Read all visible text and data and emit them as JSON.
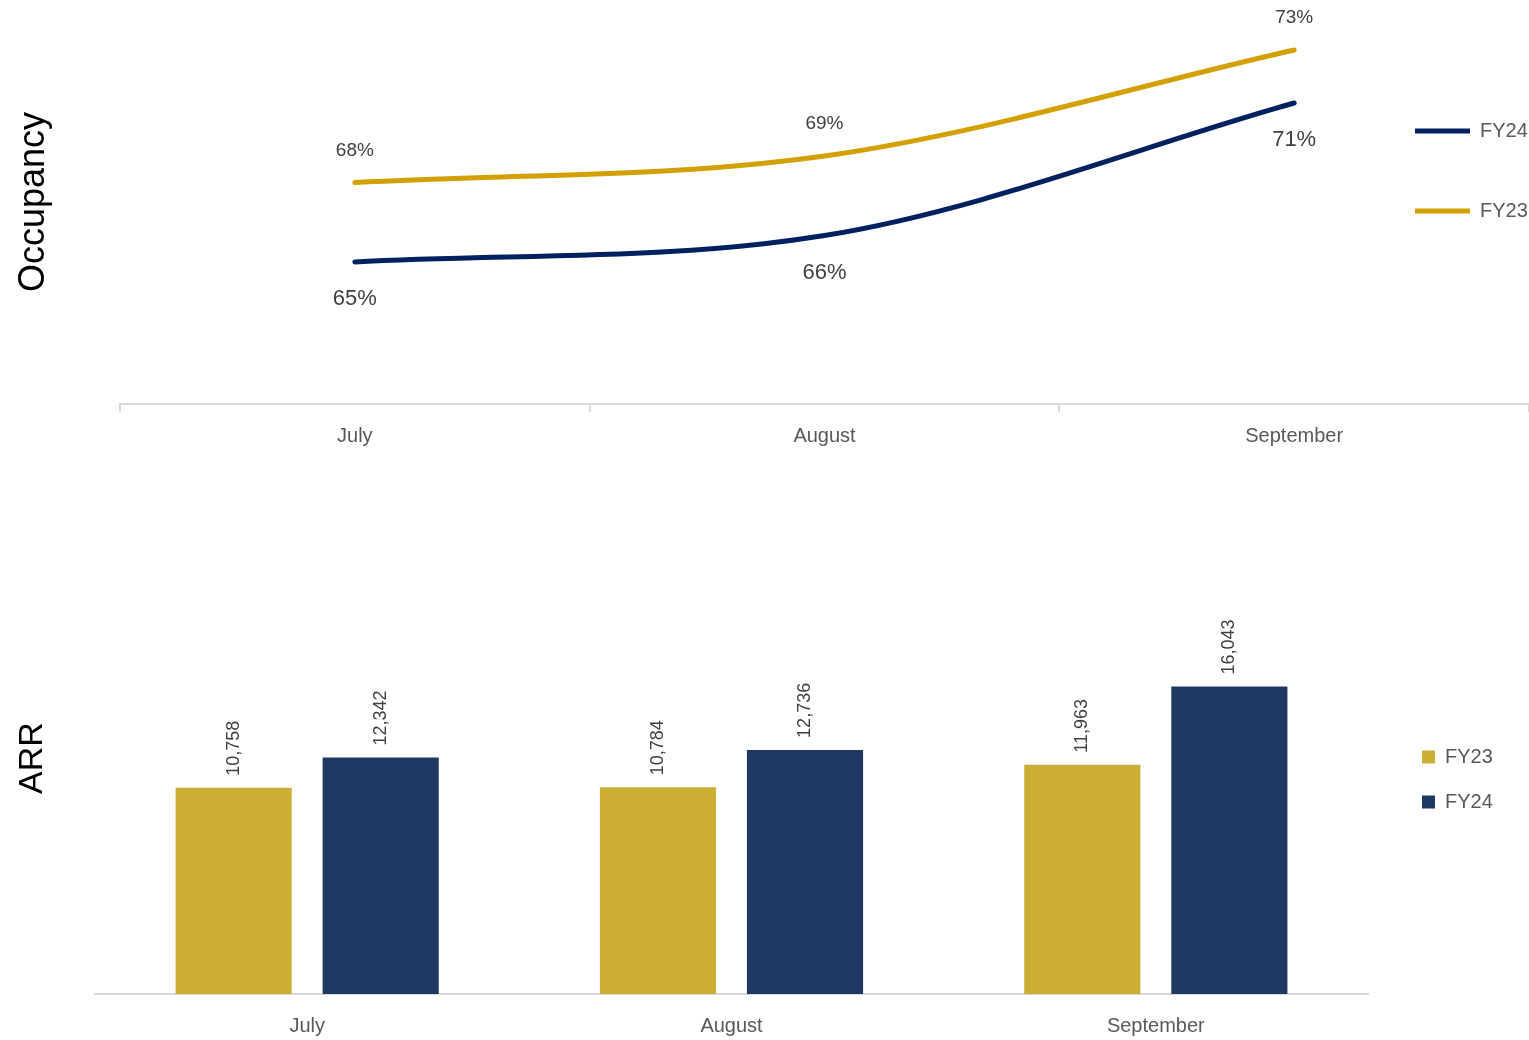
{
  "chart_data": [
    {
      "type": "line",
      "ylabel": "Occupancy",
      "categories": [
        "July",
        "August",
        "September"
      ],
      "series": [
        {
          "name": "FY24",
          "color": "#002060",
          "values": [
            65,
            66,
            71
          ],
          "value_labels": [
            "65%",
            "66%",
            "71%"
          ]
        },
        {
          "name": "FY23",
          "color": "#d2a000",
          "values": [
            68,
            69,
            73
          ],
          "value_labels": [
            "68%",
            "69%",
            "73%"
          ]
        }
      ],
      "tick_labels": "x",
      "legend": "right",
      "grid": false,
      "marker": "none",
      "line_style": "solid"
    },
    {
      "type": "bar",
      "ylabel": "ARR",
      "categories": [
        "July",
        "August",
        "September"
      ],
      "series": [
        {
          "name": "FY23",
          "color": "#cdae35",
          "values": [
            10758,
            10784,
            11963
          ],
          "value_labels": [
            "10,758",
            "10,784",
            "11,963"
          ]
        },
        {
          "name": "FY24",
          "color": "#203864",
          "values": [
            12342,
            12736,
            16043
          ],
          "value_labels": [
            "12,342",
            "12,736",
            "16,043"
          ]
        }
      ],
      "tick_labels": "x",
      "legend": "right",
      "grid": false
    }
  ]
}
